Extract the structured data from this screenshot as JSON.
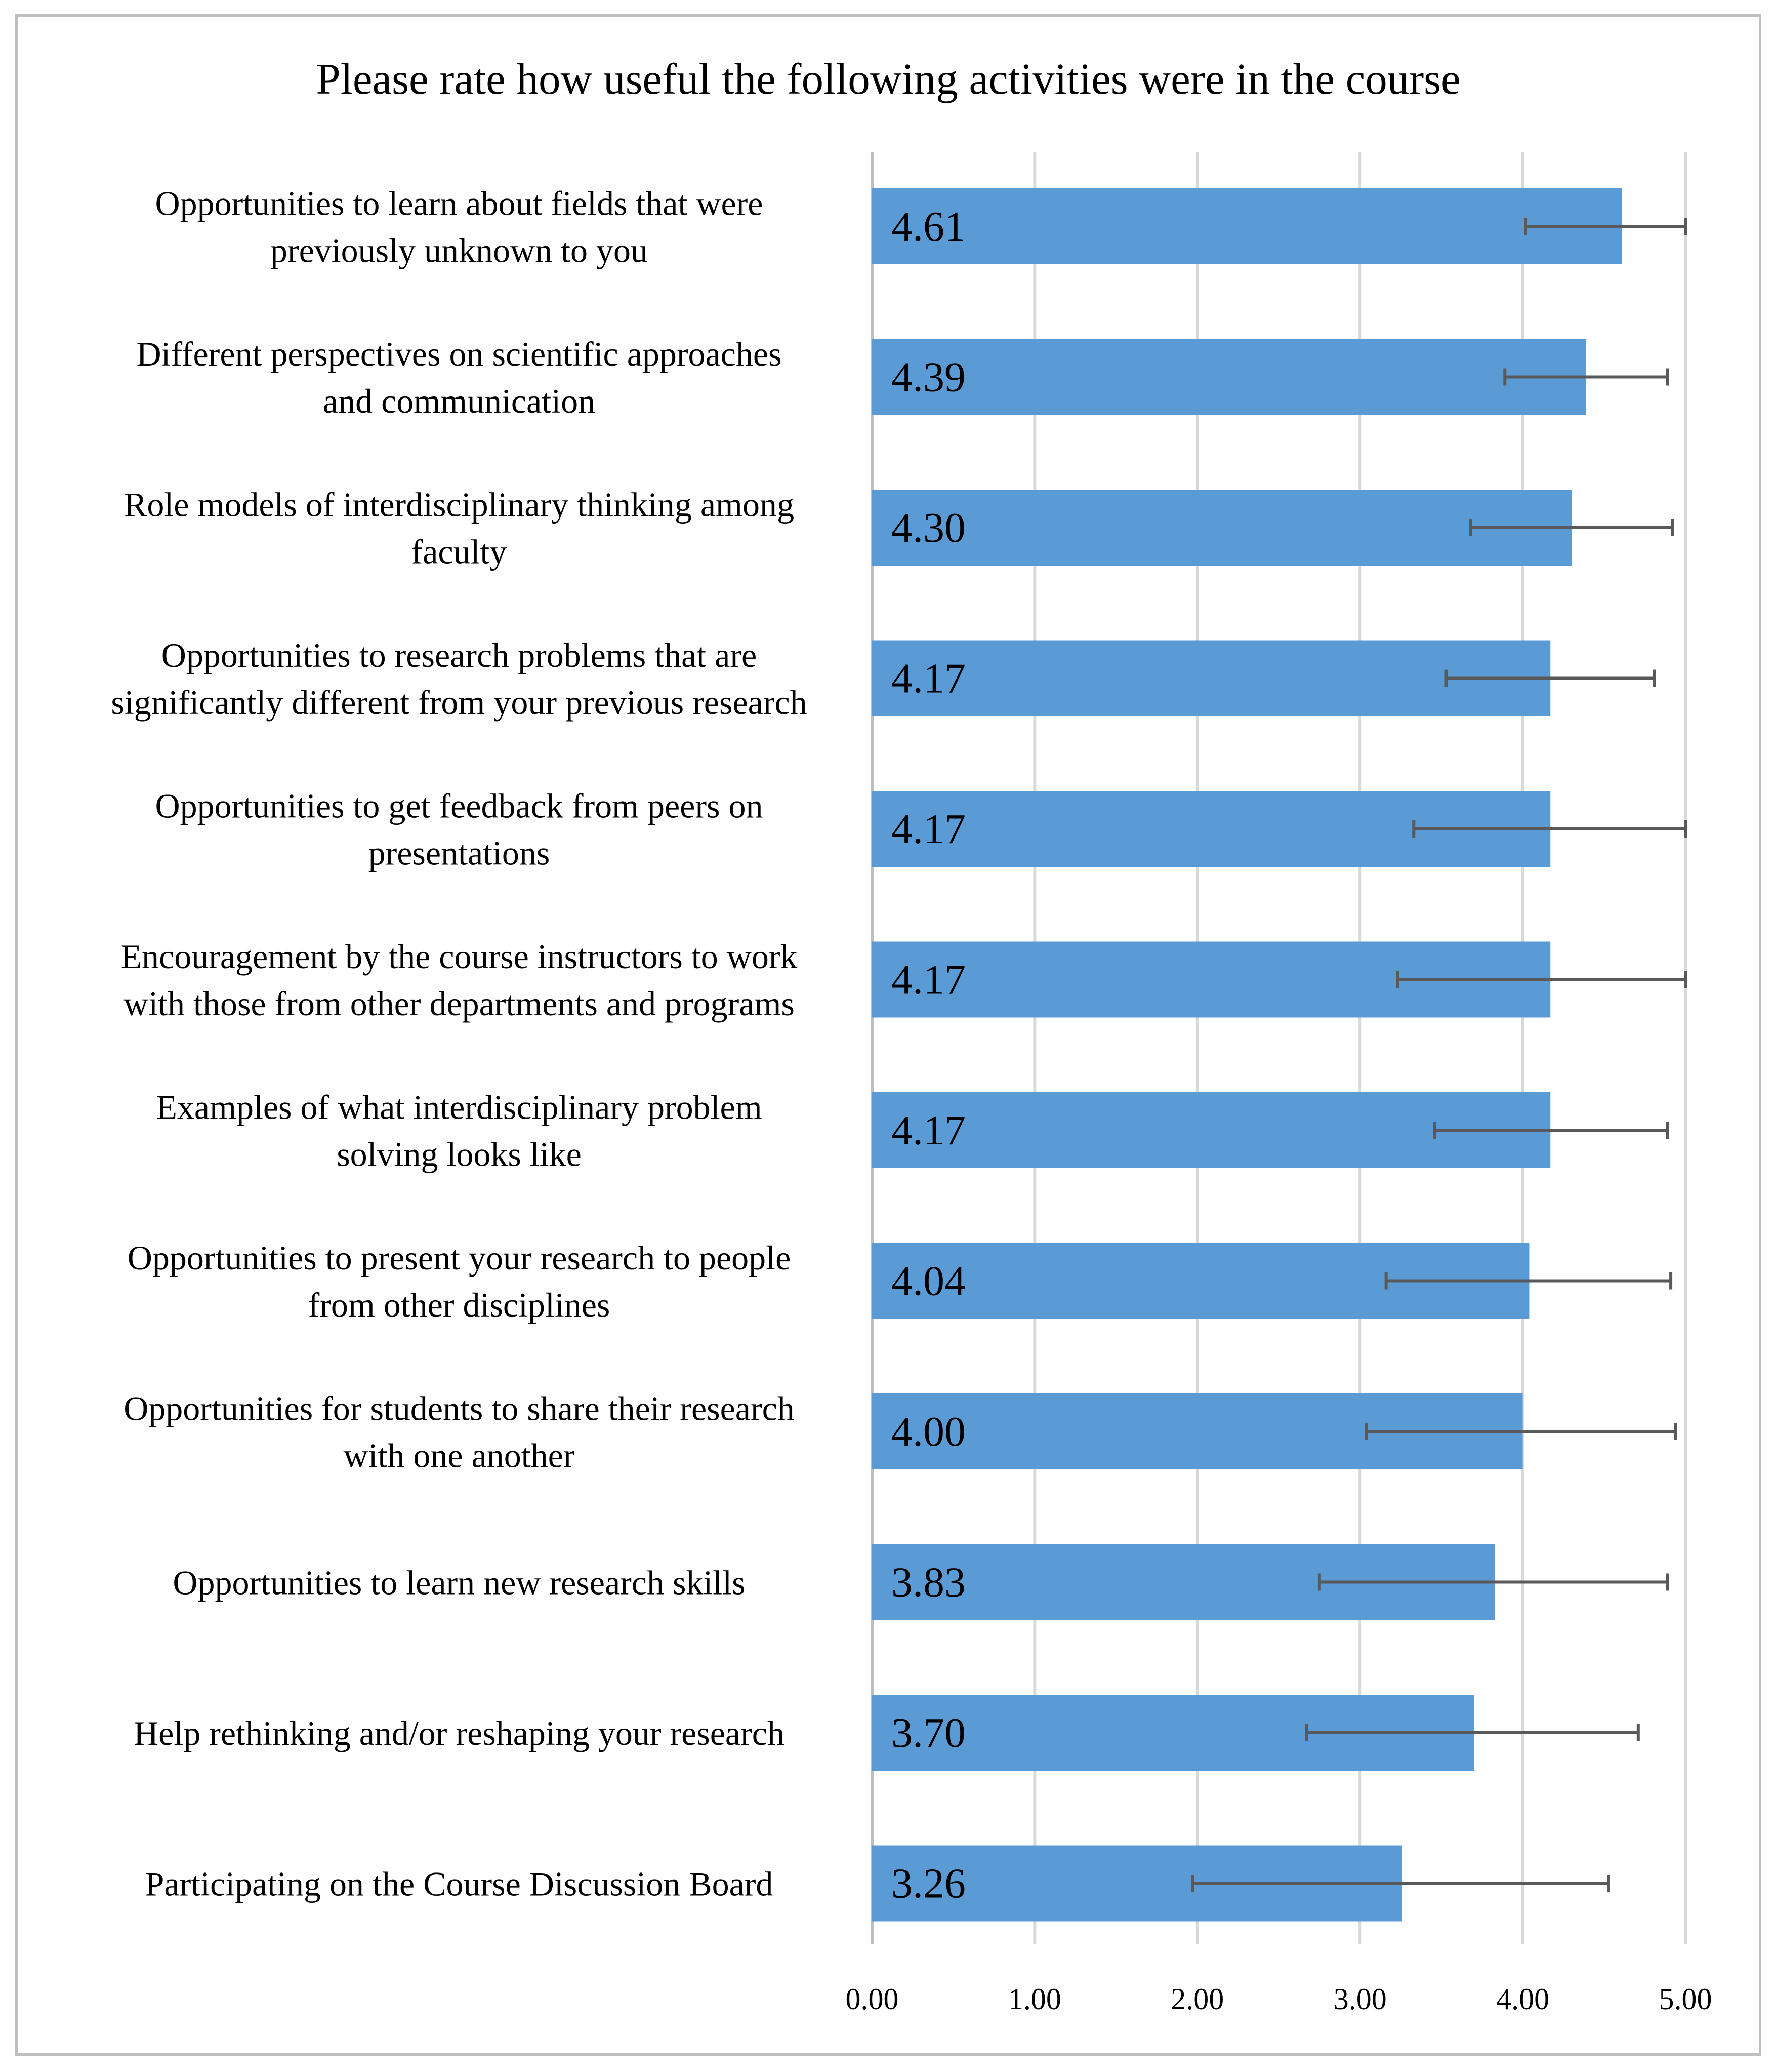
{
  "chart_data": {
    "type": "bar",
    "orientation": "horizontal",
    "title": "Please rate how useful the following activities were in the course",
    "xlabel": "",
    "ylabel": "",
    "xlim": [
      0,
      5
    ],
    "grid": true,
    "bar_color": "#5b9bd5",
    "error_color": "#595959",
    "ticks": [
      "0.00",
      "1.00",
      "2.00",
      "3.00",
      "4.00",
      "5.00"
    ],
    "categories": [
      [
        "Opportunities to learn about fields that were",
        "previously unknown to you"
      ],
      [
        "Different perspectives on scientific approaches",
        "and communication"
      ],
      [
        "Role models of interdisciplinary thinking among",
        "faculty"
      ],
      [
        "Opportunities to research problems that are",
        "significantly different from your previous research"
      ],
      [
        "Opportunities to get feedback from peers on",
        "presentations"
      ],
      [
        "Encouragement by the course instructors to work",
        "with those from other departments and programs"
      ],
      [
        "Examples of what interdisciplinary problem",
        "solving looks like"
      ],
      [
        "Opportunities to present your research to people",
        "from other disciplines"
      ],
      [
        "Opportunities for students to share their research",
        "with one another"
      ],
      [
        "Opportunities to learn new research skills"
      ],
      [
        "Help rethinking and/or reshaping your research"
      ],
      [
        "Participating on the Course Discussion Board"
      ]
    ],
    "values": [
      4.61,
      4.39,
      4.3,
      4.17,
      4.17,
      4.17,
      4.17,
      4.04,
      4.0,
      3.83,
      3.7,
      3.26
    ],
    "value_labels": [
      "4.61",
      "4.39",
      "4.30",
      "4.17",
      "4.17",
      "4.17",
      "4.17",
      "4.04",
      "4.00",
      "3.83",
      "3.70",
      "3.26"
    ],
    "error_low": [
      4.02,
      3.89,
      3.68,
      3.53,
      3.33,
      3.23,
      3.46,
      3.16,
      3.04,
      2.75,
      2.67,
      1.97
    ],
    "error_high": [
      5.0,
      4.89,
      4.92,
      4.81,
      5.0,
      5.0,
      4.89,
      4.91,
      4.94,
      4.89,
      4.71,
      4.53
    ]
  }
}
